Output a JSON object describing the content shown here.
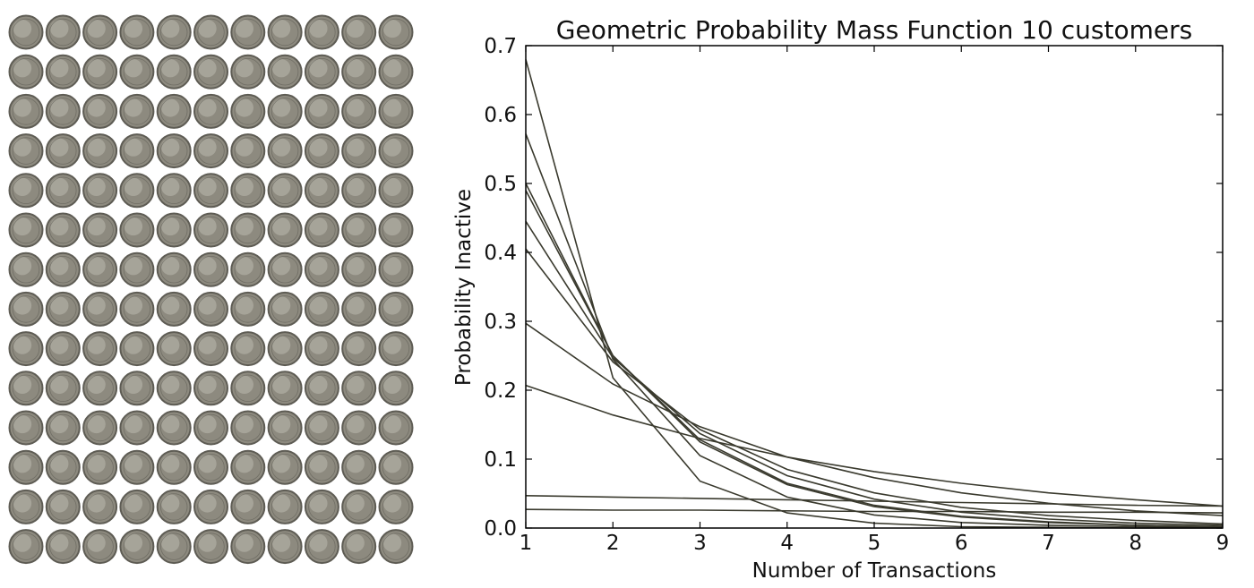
{
  "coin_panel": {
    "rows": 14,
    "cols": 11,
    "colors": {
      "coin_fill": "#8d8a7f",
      "coin_edge": "#5e5c54",
      "coin_light": "#d8d5cb"
    }
  },
  "chart_data": {
    "type": "line",
    "title": "Geometric Probability Mass Function 10 customers",
    "xlabel": "Number of Transactions",
    "ylabel": "Probability Inactive",
    "xlim": [
      1,
      9
    ],
    "ylim": [
      0,
      0.7
    ],
    "xticks": [
      "1",
      "2",
      "3",
      "4",
      "5",
      "6",
      "7",
      "8",
      "9"
    ],
    "yticks": [
      "0.0",
      "0.1",
      "0.2",
      "0.3",
      "0.4",
      "0.5",
      "0.6",
      "0.7"
    ],
    "grid": false,
    "line_color": "#3a3a2e",
    "x": [
      1,
      2,
      3,
      4,
      5,
      6,
      7,
      8,
      9
    ],
    "series": [
      {
        "values": [
          0.68,
          0.218,
          0.068,
          0.022,
          0.007,
          0.002,
          0.001,
          0.0,
          0.0
        ]
      },
      {
        "values": [
          0.572,
          0.245,
          0.105,
          0.045,
          0.019,
          0.008,
          0.004,
          0.002,
          0.001
        ]
      },
      {
        "values": [
          0.5,
          0.25,
          0.125,
          0.063,
          0.031,
          0.016,
          0.008,
          0.004,
          0.002
        ]
      },
      {
        "values": [
          0.49,
          0.25,
          0.128,
          0.065,
          0.033,
          0.017,
          0.009,
          0.004,
          0.002
        ]
      },
      {
        "values": [
          0.445,
          0.247,
          0.137,
          0.076,
          0.042,
          0.023,
          0.013,
          0.007,
          0.004
        ]
      },
      {
        "values": [
          0.405,
          0.241,
          0.143,
          0.085,
          0.051,
          0.03,
          0.018,
          0.011,
          0.006
        ]
      },
      {
        "values": [
          0.297,
          0.209,
          0.147,
          0.103,
          0.073,
          0.051,
          0.036,
          0.025,
          0.018
        ]
      },
      {
        "values": [
          0.207,
          0.164,
          0.13,
          0.103,
          0.082,
          0.065,
          0.051,
          0.041,
          0.032
        ]
      },
      {
        "values": [
          0.047,
          0.045,
          0.043,
          0.041,
          0.039,
          0.037,
          0.035,
          0.033,
          0.032
        ]
      },
      {
        "values": [
          0.027,
          0.026,
          0.026,
          0.025,
          0.024,
          0.024,
          0.023,
          0.023,
          0.022
        ]
      }
    ]
  }
}
